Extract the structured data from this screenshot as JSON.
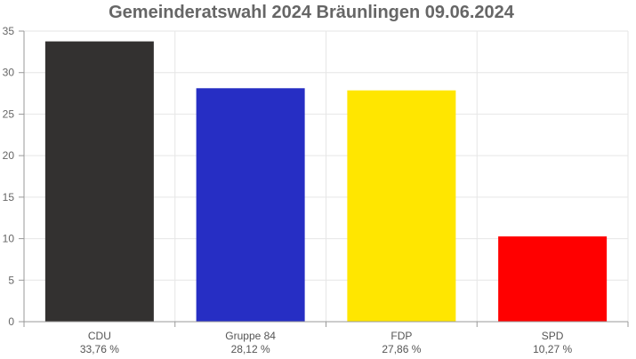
{
  "chart_data": {
    "type": "bar",
    "title": "Gemeinderatswahl 2024 Bräunlingen 09.06.2024",
    "categories": [
      "CDU",
      "Gruppe 84",
      "FDP",
      "SPD"
    ],
    "category_sublabels": [
      "33,76 %",
      "28,12 %",
      "27,86 %",
      "10,27 %"
    ],
    "values": [
      33.76,
      28.12,
      27.86,
      10.27
    ],
    "colors": [
      "#333130",
      "#262ec4",
      "#ffe600",
      "#ff0000"
    ],
    "ylim": [
      0,
      35
    ],
    "yticks": [
      0,
      5,
      10,
      15,
      20,
      25,
      30,
      35
    ],
    "grid": true,
    "legend": "none"
  }
}
